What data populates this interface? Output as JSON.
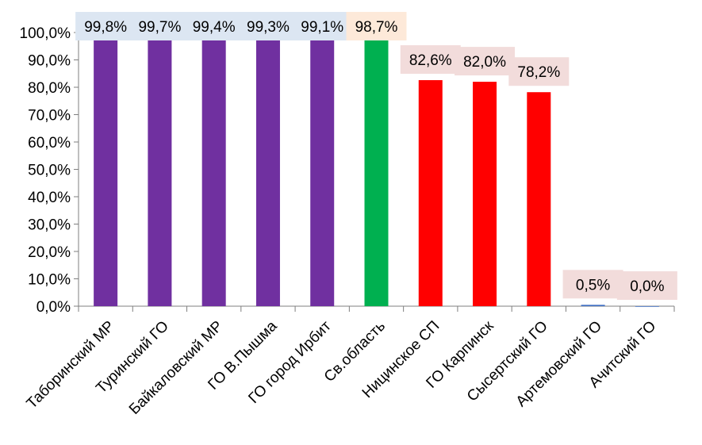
{
  "chart_data": {
    "type": "bar",
    "categories": [
      "Таборинский МР",
      "Туринский ГО",
      "Байкаловский МР",
      "ГО В.Пышма",
      "ГО город Ирбит",
      "Св.область",
      "Ницинское СП",
      "ГО Карпинск",
      "Сысертский ГО",
      "Артемовский ГО",
      "Ачитский ГО"
    ],
    "values": [
      99.8,
      99.7,
      99.4,
      99.3,
      99.1,
      98.7,
      82.6,
      82.0,
      78.2,
      0.5,
      0.0
    ],
    "data_labels": [
      "99,8%",
      "99,7%",
      "99,4%",
      "99,3%",
      "99,1%",
      "98,7%",
      "82,6%",
      "82,0%",
      "78,2%",
      "0,5%",
      "0,0%"
    ],
    "bar_colors": [
      "#7030A0",
      "#7030A0",
      "#7030A0",
      "#7030A0",
      "#7030A0",
      "#00B050",
      "#FF0000",
      "#FF0000",
      "#FF0000",
      "#4472C4",
      "#4472C4"
    ],
    "label_backgrounds": [
      "#DCE6F2",
      "#DCE6F2",
      "#DCE6F2",
      "#DCE6F2",
      "#DCE6F2",
      "#FDE9D9",
      "#F2DCDB",
      "#F2DCDB",
      "#F2DCDB",
      "#F2DCDB",
      "#F2DCDB"
    ],
    "ylim": [
      0,
      100
    ],
    "y_ticks": [
      "0,0%",
      "10,0%",
      "20,0%",
      "30,0%",
      "40,0%",
      "50,0%",
      "60,0%",
      "70,0%",
      "80,0%",
      "90,0%",
      "100,0%"
    ],
    "grid": false,
    "legend": "none"
  }
}
